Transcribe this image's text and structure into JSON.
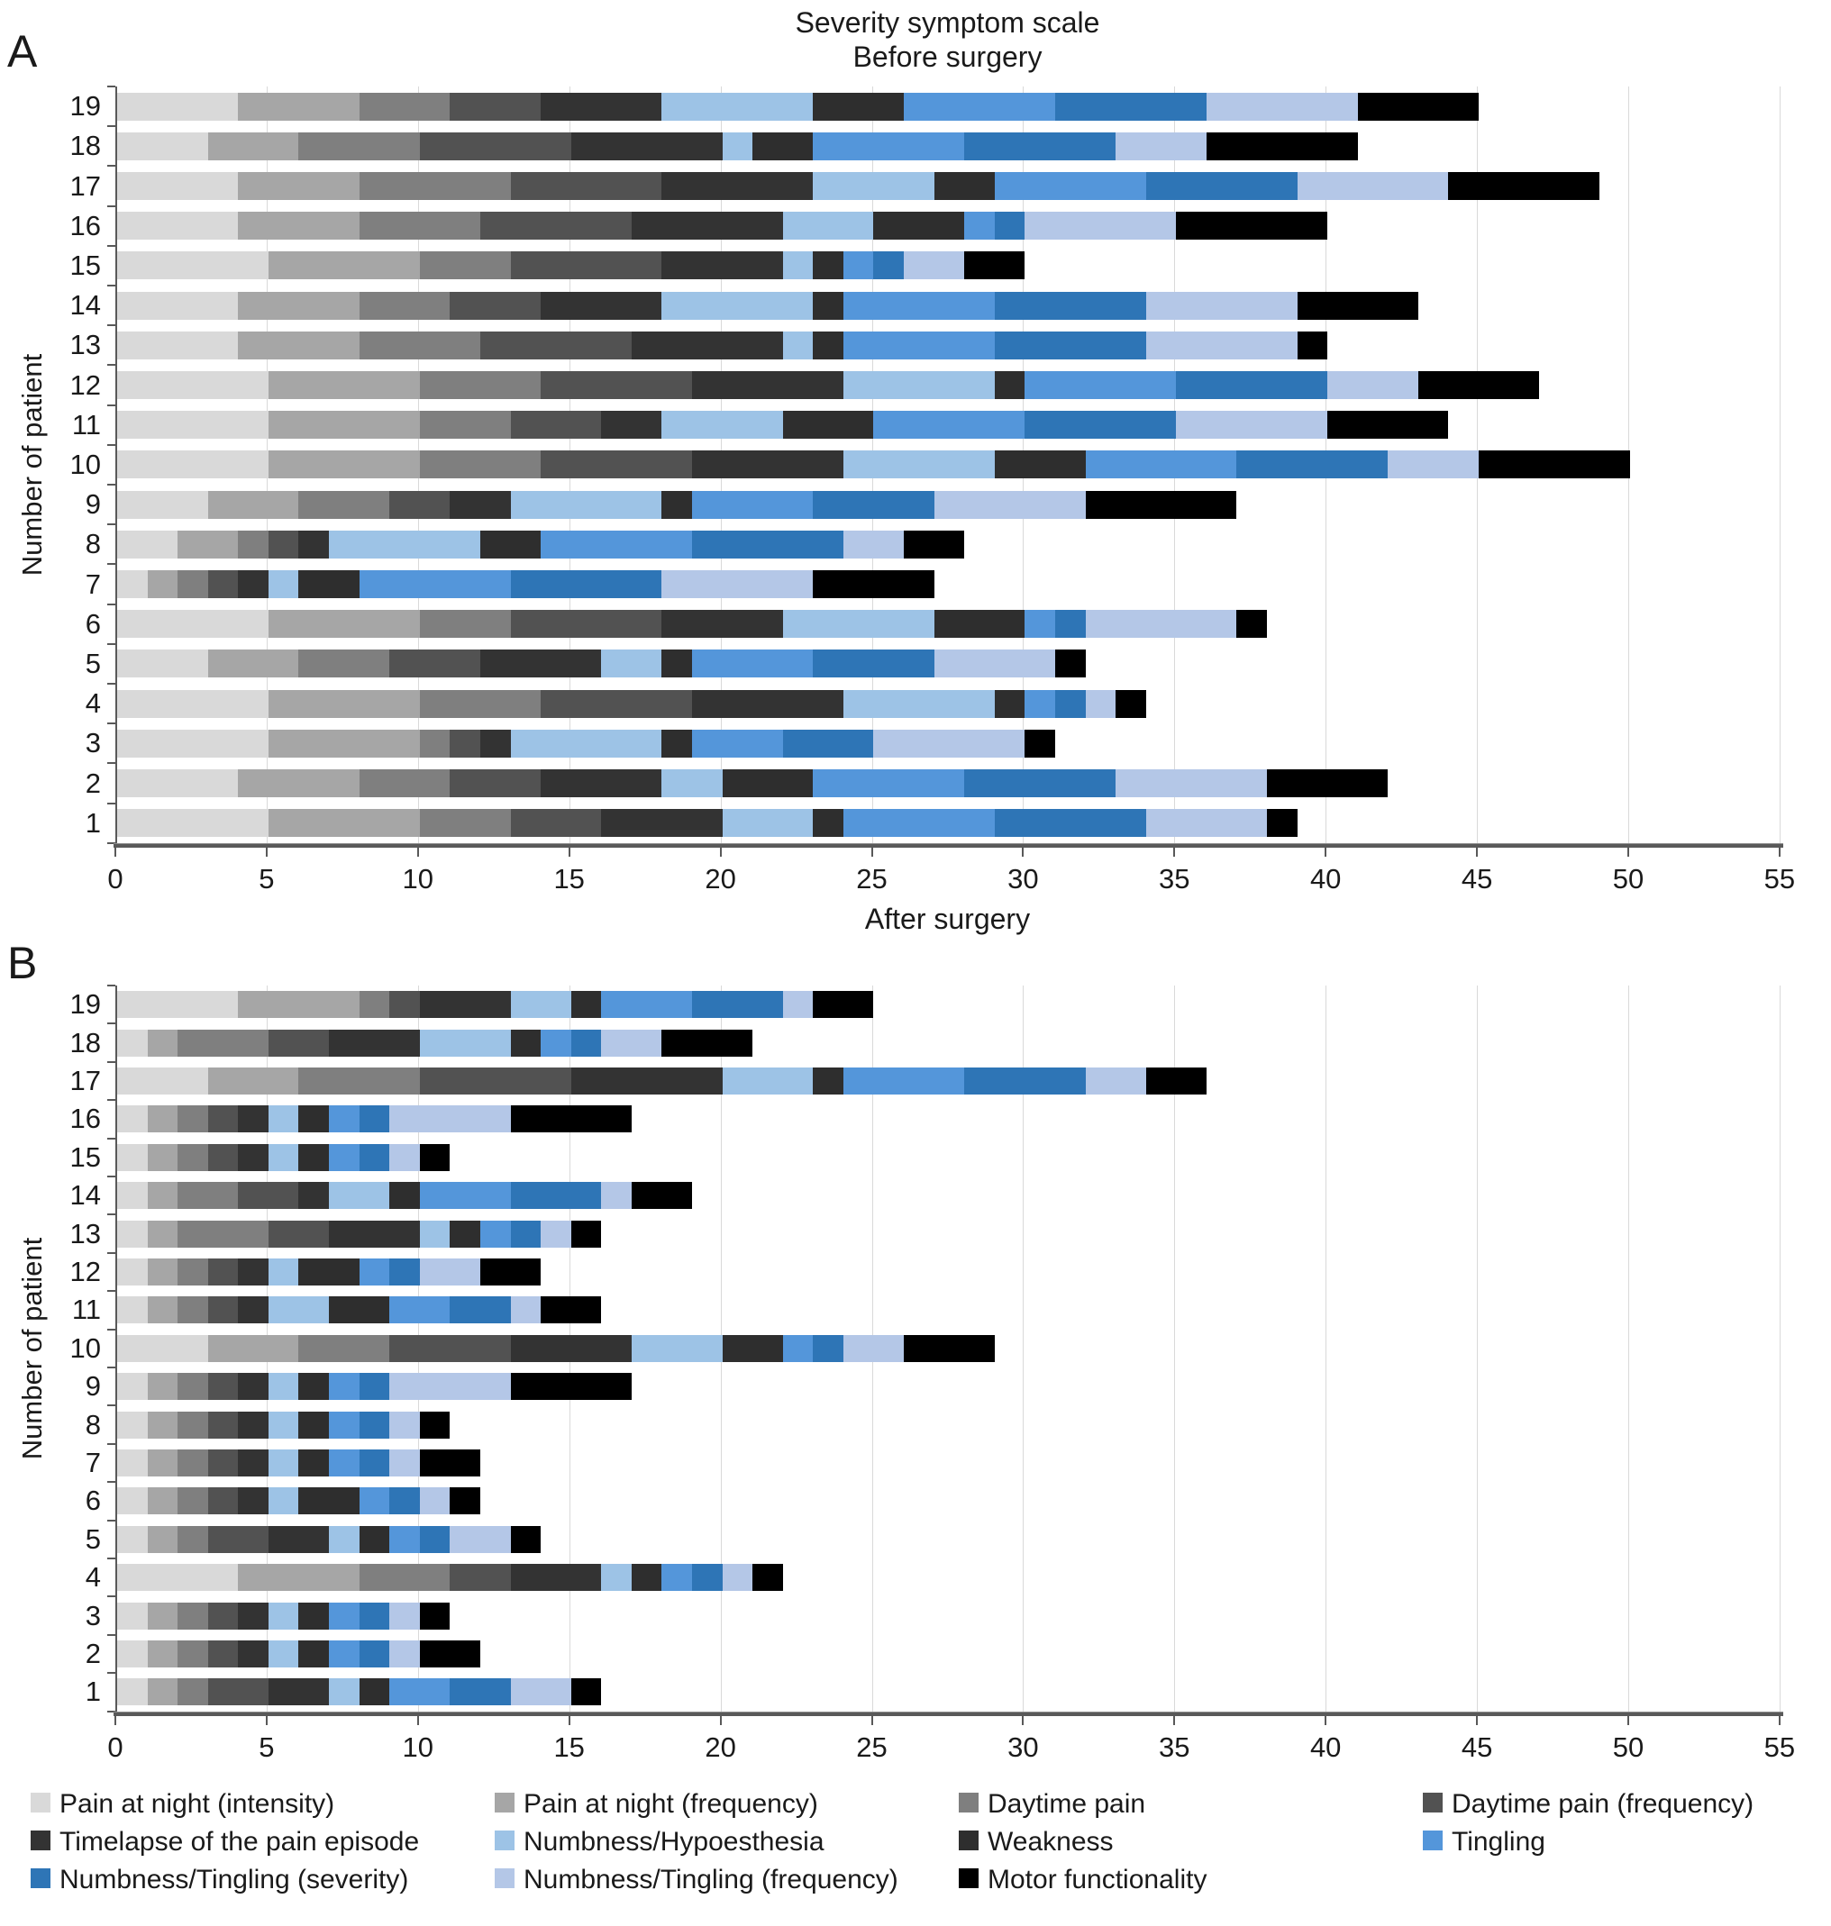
{
  "page": {
    "panel_a_label": "A",
    "panel_b_label": "B",
    "title_line1": "Severity symptom scale",
    "title_line2": "Before surgery",
    "between_label": "After surgery",
    "y_axis_title": "Number of patient"
  },
  "legend": {
    "items": [
      {
        "label": "Pain at night (intensity)",
        "color": "#d9d9d9"
      },
      {
        "label": "Pain at night (frequency)",
        "color": "#a6a6a6"
      },
      {
        "label": "Daytime pain",
        "color": "#7f7f7f"
      },
      {
        "label": "Daytime pain (frequency)",
        "color": "#525252"
      },
      {
        "label": "Timelapse of the pain episode",
        "color": "#333333"
      },
      {
        "label": "Numbness/Hypoesthesia",
        "color": "#9dc3e6"
      },
      {
        "label": "Weakness",
        "color": "#2e2e2e"
      },
      {
        "label": "Tingling",
        "color": "#5496da"
      },
      {
        "label": "Numbness/Tingling (severity)",
        "color": "#2e75b6"
      },
      {
        "label": "Numbness/Tingling (frequency)",
        "color": "#b4c7e7"
      },
      {
        "label": "Motor functionality",
        "color": "#000000"
      }
    ]
  },
  "chart_data": [
    {
      "id": "before",
      "type": "bar",
      "subtype": "horizontal-stacked",
      "title": "Severity symptom scale — Before surgery",
      "categories": [
        1,
        2,
        3,
        4,
        5,
        6,
        7,
        8,
        9,
        10,
        11,
        12,
        13,
        14,
        15,
        16,
        17,
        18,
        19
      ],
      "xlim": [
        0,
        55
      ],
      "xticks": [
        0,
        5,
        10,
        15,
        20,
        25,
        30,
        35,
        40,
        45,
        50,
        55
      ],
      "grid": true,
      "legend_position": "bottom",
      "series": [
        {
          "name": "Pain at night (intensity)",
          "color": "#d9d9d9",
          "values": [
            5,
            4,
            5,
            5,
            3,
            5,
            1,
            2,
            3,
            5,
            5,
            5,
            4,
            4,
            5,
            4,
            4,
            3,
            4
          ]
        },
        {
          "name": "Pain at night (frequency)",
          "color": "#a6a6a6",
          "values": [
            5,
            4,
            5,
            5,
            3,
            5,
            1,
            2,
            3,
            5,
            5,
            5,
            4,
            4,
            5,
            4,
            4,
            3,
            4
          ]
        },
        {
          "name": "Daytime pain",
          "color": "#7f7f7f",
          "values": [
            3,
            3,
            1,
            4,
            3,
            3,
            1,
            1,
            3,
            4,
            3,
            4,
            4,
            3,
            3,
            4,
            5,
            4,
            3
          ]
        },
        {
          "name": "Daytime pain (frequency)",
          "color": "#525252",
          "values": [
            3,
            3,
            1,
            5,
            3,
            5,
            1,
            1,
            2,
            5,
            3,
            5,
            5,
            3,
            5,
            5,
            5,
            5,
            3
          ]
        },
        {
          "name": "Timelapse of the pain episode",
          "color": "#333333",
          "values": [
            4,
            4,
            1,
            5,
            4,
            4,
            1,
            1,
            2,
            5,
            2,
            5,
            5,
            4,
            4,
            5,
            5,
            5,
            4
          ]
        },
        {
          "name": "Numbness/Hypoesthesia",
          "color": "#9dc3e6",
          "values": [
            3,
            2,
            5,
            5,
            2,
            5,
            1,
            5,
            5,
            5,
            4,
            5,
            1,
            5,
            1,
            3,
            4,
            1,
            5
          ]
        },
        {
          "name": "Weakness",
          "color": "#2e2e2e",
          "values": [
            1,
            3,
            1,
            1,
            1,
            3,
            2,
            2,
            1,
            3,
            3,
            1,
            1,
            1,
            1,
            3,
            2,
            2,
            3
          ]
        },
        {
          "name": "Tingling",
          "color": "#5496da",
          "values": [
            5,
            5,
            3,
            1,
            4,
            1,
            5,
            5,
            4,
            5,
            5,
            5,
            5,
            5,
            1,
            1,
            5,
            5,
            5
          ]
        },
        {
          "name": "Numbness/Tingling (severity)",
          "color": "#2e75b6",
          "values": [
            5,
            5,
            3,
            1,
            4,
            1,
            5,
            5,
            4,
            5,
            5,
            5,
            5,
            5,
            1,
            1,
            5,
            5,
            5
          ]
        },
        {
          "name": "Numbness/Tingling (frequency)",
          "color": "#b4c7e7",
          "values": [
            4,
            5,
            5,
            1,
            4,
            5,
            5,
            2,
            5,
            3,
            5,
            3,
            5,
            5,
            2,
            5,
            5,
            3,
            5
          ]
        },
        {
          "name": "Motor functionality",
          "color": "#000000",
          "values": [
            1,
            4,
            1,
            1,
            1,
            1,
            4,
            2,
            5,
            5,
            4,
            4,
            1,
            4,
            2,
            5,
            5,
            5,
            4
          ]
        }
      ],
      "totals": [
        39,
        42,
        31,
        34,
        32,
        38,
        27,
        28,
        37,
        50,
        44,
        47,
        40,
        43,
        30,
        40,
        49,
        41,
        45
      ]
    },
    {
      "id": "after",
      "type": "bar",
      "subtype": "horizontal-stacked",
      "title": "After surgery",
      "categories": [
        1,
        2,
        3,
        4,
        5,
        6,
        7,
        8,
        9,
        10,
        11,
        12,
        13,
        14,
        15,
        16,
        17,
        18,
        19
      ],
      "xlim": [
        0,
        55
      ],
      "xticks": [
        0,
        5,
        10,
        15,
        20,
        25,
        30,
        35,
        40,
        45,
        50,
        55
      ],
      "grid": true,
      "legend_position": "bottom",
      "series": [
        {
          "name": "Pain at night (intensity)",
          "color": "#d9d9d9",
          "values": [
            1,
            1,
            1,
            4,
            1,
            1,
            1,
            1,
            1,
            3,
            1,
            1,
            1,
            1,
            1,
            1,
            3,
            1,
            4
          ]
        },
        {
          "name": "Pain at night (frequency)",
          "color": "#a6a6a6",
          "values": [
            1,
            1,
            1,
            4,
            1,
            1,
            1,
            1,
            1,
            3,
            1,
            1,
            1,
            1,
            1,
            1,
            3,
            1,
            4
          ]
        },
        {
          "name": "Daytime pain",
          "color": "#7f7f7f",
          "values": [
            1,
            1,
            1,
            3,
            1,
            1,
            1,
            1,
            1,
            3,
            1,
            1,
            3,
            2,
            1,
            1,
            4,
            3,
            1
          ]
        },
        {
          "name": "Daytime pain (frequency)",
          "color": "#525252",
          "values": [
            2,
            1,
            1,
            2,
            2,
            1,
            1,
            1,
            1,
            4,
            1,
            1,
            2,
            2,
            1,
            1,
            5,
            2,
            1
          ]
        },
        {
          "name": "Timelapse of the pain episode",
          "color": "#333333",
          "values": [
            2,
            1,
            1,
            3,
            2,
            1,
            1,
            1,
            1,
            4,
            1,
            1,
            3,
            1,
            1,
            1,
            5,
            3,
            3
          ]
        },
        {
          "name": "Numbness/Hypoesthesia",
          "color": "#9dc3e6",
          "values": [
            1,
            1,
            1,
            1,
            1,
            1,
            1,
            1,
            1,
            3,
            2,
            1,
            1,
            2,
            1,
            1,
            3,
            3,
            2
          ]
        },
        {
          "name": "Weakness",
          "color": "#2e2e2e",
          "values": [
            1,
            1,
            1,
            1,
            1,
            2,
            1,
            1,
            1,
            2,
            2,
            2,
            1,
            1,
            1,
            1,
            1,
            1,
            1
          ]
        },
        {
          "name": "Tingling",
          "color": "#5496da",
          "values": [
            2,
            1,
            1,
            1,
            1,
            1,
            1,
            1,
            1,
            1,
            2,
            1,
            1,
            3,
            1,
            1,
            4,
            1,
            3
          ]
        },
        {
          "name": "Numbness/Tingling (severity)",
          "color": "#2e75b6",
          "values": [
            2,
            1,
            1,
            1,
            1,
            1,
            1,
            1,
            1,
            1,
            2,
            1,
            1,
            3,
            1,
            1,
            4,
            1,
            3
          ]
        },
        {
          "name": "Numbness/Tingling (frequency)",
          "color": "#b4c7e7",
          "values": [
            2,
            1,
            1,
            1,
            2,
            1,
            1,
            1,
            4,
            2,
            1,
            2,
            1,
            1,
            1,
            4,
            2,
            2,
            1
          ]
        },
        {
          "name": "Motor functionality",
          "color": "#000000",
          "values": [
            1,
            2,
            1,
            1,
            1,
            1,
            2,
            1,
            4,
            3,
            2,
            2,
            1,
            2,
            1,
            4,
            2,
            3,
            2
          ]
        }
      ],
      "totals": [
        16,
        12,
        11,
        22,
        14,
        12,
        12,
        11,
        17,
        29,
        16,
        14,
        16,
        19,
        11,
        17,
        36,
        21,
        25
      ]
    }
  ]
}
